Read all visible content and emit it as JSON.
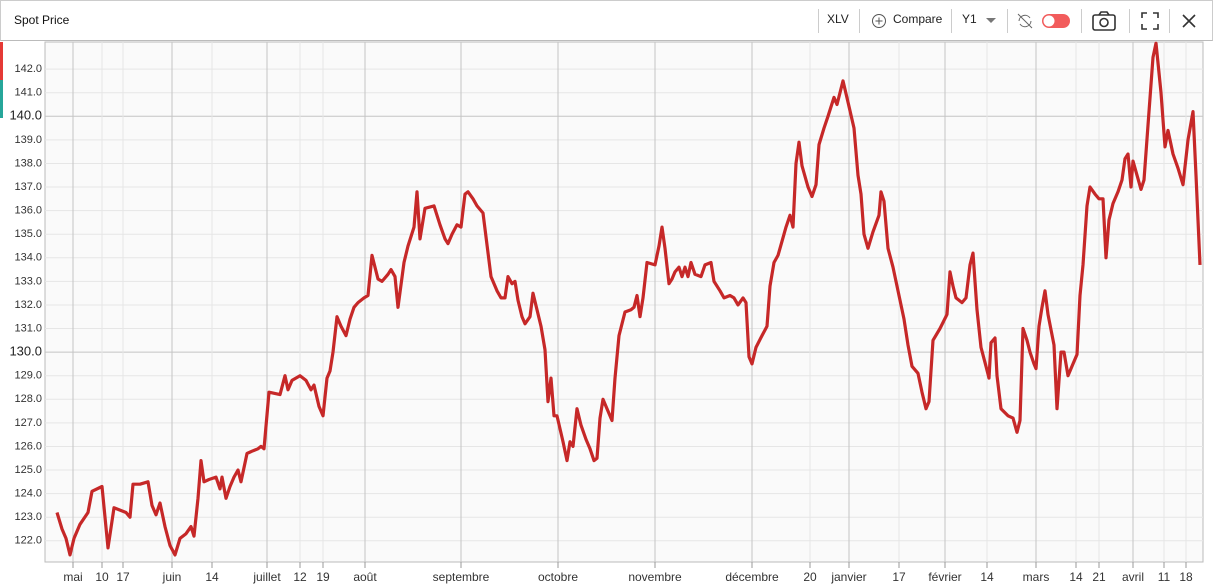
{
  "toolbar": {
    "symbol": "XLV",
    "compare": "Compare",
    "period": "Y1"
  },
  "chart_data": {
    "type": "line",
    "title": "Spot Price",
    "color": "#c62828",
    "x": [
      0,
      5,
      9,
      13,
      17,
      23,
      31,
      35,
      45,
      51,
      57,
      63,
      69,
      73,
      76,
      83,
      91,
      95,
      99,
      103,
      108,
      113,
      118,
      123,
      129,
      134,
      137,
      141,
      144,
      147,
      152,
      159,
      163,
      165,
      169,
      173,
      177,
      181,
      184,
      190,
      195,
      201,
      204,
      207,
      212,
      223,
      228,
      231,
      235,
      243,
      249,
      254,
      257,
      262,
      266,
      270,
      273,
      276,
      280,
      284,
      289,
      293,
      297,
      301,
      307,
      311,
      315,
      321,
      325,
      331,
      334,
      338,
      341,
      347,
      351,
      357,
      360,
      363,
      368,
      377,
      383,
      388,
      391,
      395,
      400,
      404,
      408,
      411,
      416,
      420,
      426,
      434,
      440,
      444,
      448,
      451,
      455,
      458,
      461,
      465,
      468,
      473,
      476,
      484,
      488,
      491,
      494,
      497,
      500,
      506,
      510,
      513,
      516,
      520,
      524,
      529,
      533,
      537,
      540,
      543,
      546,
      550,
      555,
      558,
      562,
      568,
      574,
      577,
      580,
      583,
      586,
      590,
      598,
      602,
      605,
      608,
      612,
      615,
      618,
      622,
      625,
      628,
      631,
      634,
      638,
      644,
      648,
      654,
      657,
      663,
      667,
      673,
      677,
      681,
      686,
      689,
      692,
      695,
      699,
      705,
      710,
      713,
      717,
      721,
      725,
      729,
      733,
      736,
      739,
      742,
      745,
      751,
      755,
      759,
      762,
      767,
      771,
      777,
      780,
      786,
      791,
      797,
      801,
      804,
      807,
      811,
      816,
      822,
      824,
      827,
      831,
      836,
      840,
      847,
      851,
      855,
      861,
      865,
      869,
      872,
      876,
      883,
      890,
      893,
      896,
      899,
      905,
      909,
      913,
      916,
      920,
      924,
      929,
      932,
      934,
      938,
      940,
      944,
      951,
      956,
      960,
      963,
      966,
      970,
      973,
      977,
      979,
      982,
      985,
      988,
      991,
      997,
      1000,
      1004,
      1007,
      1011,
      1016,
      1020,
      1023,
      1026,
      1030,
      1033,
      1038,
      1042,
      1046,
      1049,
      1052,
      1056,
      1061,
      1065,
      1068,
      1071,
      1074,
      1076,
      1080,
      1084,
      1087,
      1092,
      1096,
      1099,
      1104,
      1108,
      1111,
      1116,
      1121,
      1126,
      1131,
      1136,
      1139,
      1143
    ],
    "values": [
      123.2,
      122.5,
      122.1,
      121.4,
      122.1,
      122.7,
      123.2,
      124.1,
      124.3,
      121.7,
      123.4,
      123.3,
      123.2,
      123.0,
      124.4,
      124.4,
      124.5,
      123.5,
      123.1,
      123.6,
      122.6,
      121.8,
      121.4,
      122.1,
      122.3,
      122.6,
      122.2,
      123.8,
      125.4,
      124.5,
      124.6,
      124.7,
      124.2,
      124.7,
      123.8,
      124.3,
      124.7,
      125.0,
      124.5,
      125.7,
      125.8,
      125.9,
      126.0,
      125.9,
      128.3,
      128.2,
      129.0,
      128.4,
      128.8,
      129.0,
      128.8,
      128.4,
      128.6,
      127.7,
      127.3,
      128.9,
      129.2,
      130.0,
      131.5,
      131.1,
      130.7,
      131.4,
      131.9,
      132.1,
      132.3,
      132.4,
      134.1,
      133.1,
      133.0,
      133.3,
      133.5,
      133.2,
      131.9,
      133.8,
      134.5,
      135.3,
      136.8,
      134.8,
      136.1,
      136.2,
      135.4,
      134.8,
      134.6,
      135.0,
      135.4,
      135.3,
      136.7,
      136.8,
      136.5,
      136.2,
      135.9,
      133.2,
      132.6,
      132.3,
      132.3,
      133.2,
      132.9,
      133.0,
      132.2,
      131.5,
      131.2,
      131.5,
      132.5,
      131.1,
      130.1,
      127.9,
      128.9,
      127.3,
      127.3,
      126.2,
      125.4,
      126.2,
      126.0,
      127.6,
      126.9,
      126.3,
      125.9,
      125.4,
      125.5,
      127.2,
      128.0,
      127.6,
      127.1,
      128.9,
      130.7,
      131.7,
      131.8,
      131.9,
      132.4,
      131.5,
      132.3,
      133.8,
      133.7,
      134.5,
      135.3,
      134.4,
      132.9,
      133.1,
      133.4,
      133.6,
      133.2,
      133.6,
      133.2,
      133.8,
      133.3,
      133.2,
      133.7,
      133.8,
      133.0,
      132.6,
      132.3,
      132.4,
      132.3,
      132.0,
      132.3,
      132.1,
      129.8,
      129.5,
      130.2,
      130.7,
      131.1,
      132.8,
      133.8,
      134.1,
      134.7,
      135.3,
      135.8,
      135.3,
      138.0,
      138.9,
      137.9,
      137.0,
      136.6,
      137.1,
      138.8,
      139.5,
      140.0,
      140.8,
      140.5,
      141.5,
      140.6,
      139.5,
      137.5,
      136.7,
      135.0,
      134.4,
      135.1,
      135.8,
      136.8,
      136.4,
      134.4,
      133.6,
      132.8,
      131.4,
      130.3,
      129.4,
      129.1,
      128.3,
      127.6,
      127.9,
      130.5,
      131.0,
      131.6,
      133.4,
      132.8,
      132.3,
      132.1,
      132.3,
      133.7,
      134.2,
      131.8,
      130.2,
      129.4,
      128.9,
      130.4,
      130.6,
      129.0,
      127.6,
      127.3,
      127.2,
      126.6,
      127.1,
      131.0,
      130.5,
      130.0,
      129.5,
      129.3,
      131.1,
      131.9,
      132.6,
      131.6,
      130.3,
      127.6,
      130.0,
      130.0,
      129.0,
      129.5,
      129.9,
      132.4,
      133.7,
      136.2,
      137.0,
      136.7,
      136.5,
      136.5,
      134.0,
      135.6,
      136.3,
      136.8,
      137.3,
      138.2,
      138.4,
      137.0,
      138.1,
      137.5,
      136.9,
      137.3,
      140.2,
      142.5,
      143.1,
      141.0,
      138.7,
      139.4,
      138.4,
      137.8,
      137.1,
      139.0,
      140.2,
      137.5,
      133.7
    ],
    "xlim": [
      -12,
      1146
    ],
    "ylim": [
      121.1,
      143.15
    ],
    "yticks": [
      {
        "value": 122,
        "label": "122.0"
      },
      {
        "value": 123,
        "label": "123.0"
      },
      {
        "value": 124,
        "label": "124.0"
      },
      {
        "value": 125,
        "label": "125.0"
      },
      {
        "value": 126,
        "label": "126.0"
      },
      {
        "value": 127,
        "label": "127.0"
      },
      {
        "value": 128,
        "label": "128.0"
      },
      {
        "value": 129,
        "label": "129.0"
      },
      {
        "value": 130,
        "label": "130.0"
      },
      {
        "value": 131,
        "label": "131.0"
      },
      {
        "value": 132,
        "label": "132.0"
      },
      {
        "value": 133,
        "label": "133.0"
      },
      {
        "value": 134,
        "label": "134.0"
      },
      {
        "value": 135,
        "label": "135.0"
      },
      {
        "value": 136,
        "label": "136.0"
      },
      {
        "value": 137,
        "label": "137.0"
      },
      {
        "value": 138,
        "label": "138.0"
      },
      {
        "value": 139,
        "label": "139.0"
      },
      {
        "value": 140,
        "label": "140.0"
      },
      {
        "value": 141,
        "label": "141.0"
      },
      {
        "value": 142,
        "label": "142.0"
      }
    ],
    "xticks": [
      {
        "value": 16,
        "label": "mai"
      },
      {
        "value": 45,
        "label": "10"
      },
      {
        "value": 66,
        "label": "17"
      },
      {
        "value": 115,
        "label": "juin"
      },
      {
        "value": 155,
        "label": "14"
      },
      {
        "value": 210,
        "label": "juillet"
      },
      {
        "value": 243,
        "label": "12"
      },
      {
        "value": 266,
        "label": "19"
      },
      {
        "value": 308,
        "label": "août"
      },
      {
        "value": 404,
        "label": "septembre"
      },
      {
        "value": 501,
        "label": "octobre"
      },
      {
        "value": 598,
        "label": "novembre"
      },
      {
        "value": 695,
        "label": "décembre"
      },
      {
        "value": 753,
        "label": "20"
      },
      {
        "value": 792,
        "label": "janvier"
      },
      {
        "value": 842,
        "label": "17"
      },
      {
        "value": 888,
        "label": "février"
      },
      {
        "value": 930,
        "label": "14"
      },
      {
        "value": 979,
        "label": "mars"
      },
      {
        "value": 1019,
        "label": "14"
      },
      {
        "value": 1042,
        "label": "21"
      },
      {
        "value": 1076,
        "label": "avril"
      },
      {
        "value": 1107,
        "label": "11"
      },
      {
        "value": 1129,
        "label": "18"
      }
    ],
    "grid": true
  }
}
